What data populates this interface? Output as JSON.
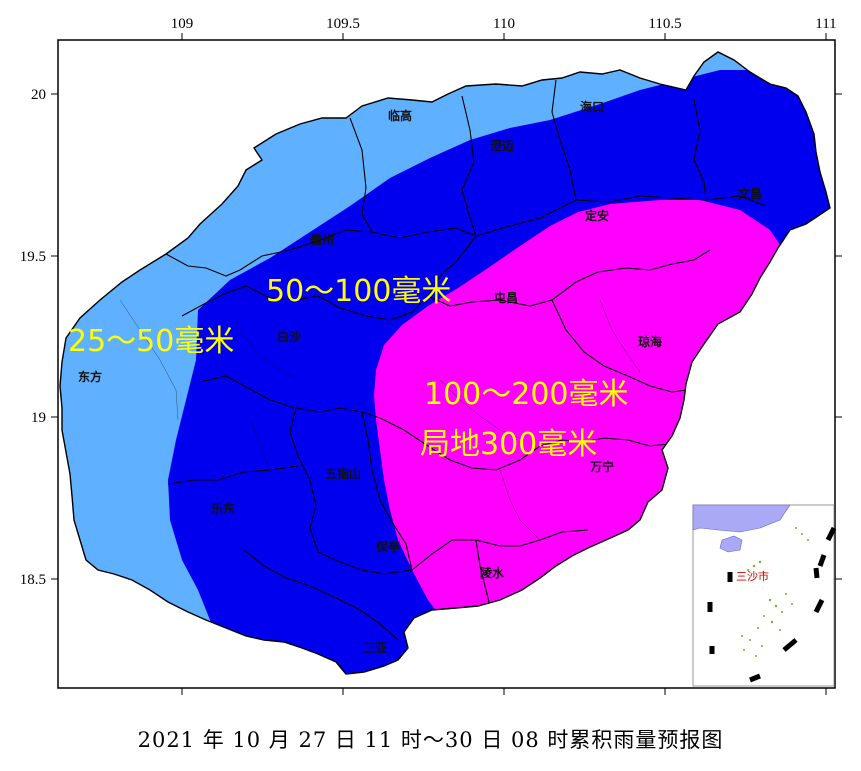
{
  "axes": {
    "x_ticks": [
      "109",
      "109.5",
      "110",
      "110.5",
      "111"
    ],
    "y_ticks": [
      "20",
      "19.5",
      "19",
      "18.5"
    ]
  },
  "cities": {
    "lingao": "临高",
    "haikou": "海口",
    "chengmai": "澄迈",
    "wenchang": "文昌",
    "danzhou": "儋州",
    "dingan": "定安",
    "tunchang": "屯昌",
    "baisha": "白沙",
    "qionghai": "琼海",
    "dongfang": "东方",
    "wuzhishan": "五指山",
    "wanning": "万宁",
    "ledong": "乐东",
    "baoting": "保亭",
    "lingshui": "陵水",
    "sanya": "三亚"
  },
  "zones": {
    "light_label": "25～50毫米",
    "mid_label": "50～100毫米",
    "high_label_1": "100～200毫米",
    "high_label_2": "局地300毫米"
  },
  "inset": {
    "label": "三沙市"
  },
  "caption": "2021 年 10 月 27 日 11 时～30 日 08 时累积雨量预报图",
  "colors": {
    "light_zone": "#5fb0ff",
    "mid_zone": "#0000ee",
    "high_zone": "#ff00ff",
    "label_yellow": "#ffff00"
  }
}
